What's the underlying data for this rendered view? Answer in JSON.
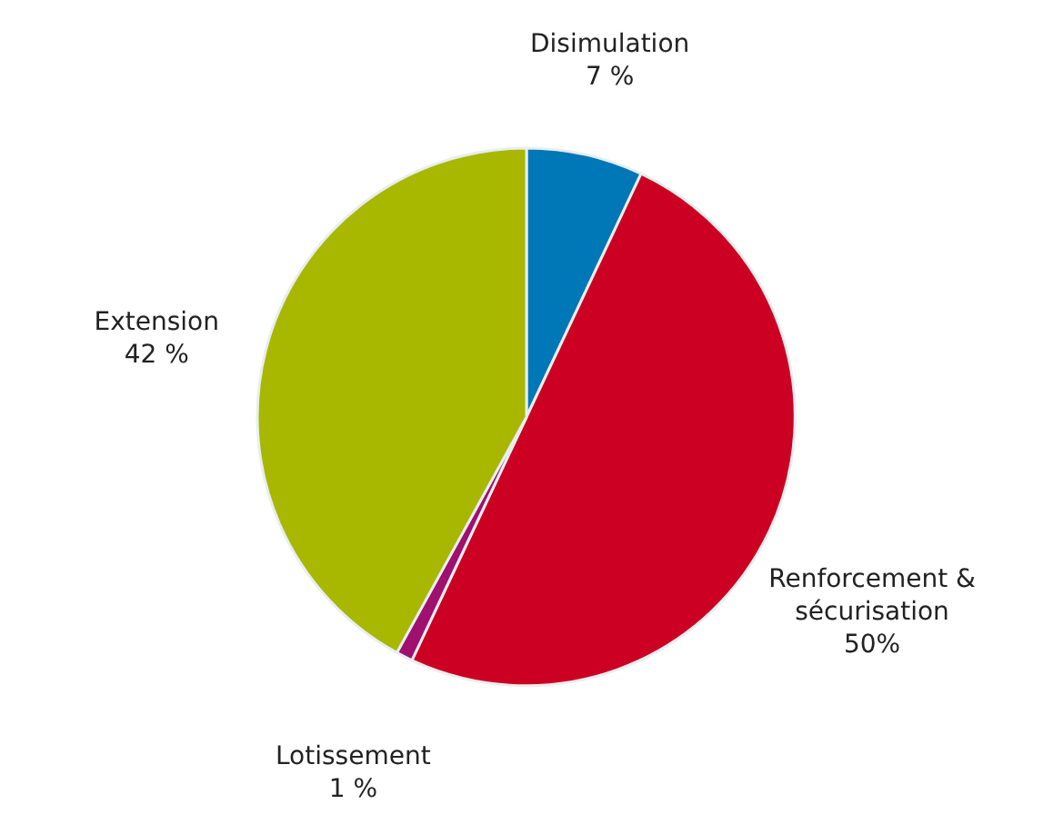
{
  "chart_data": {
    "type": "pie",
    "categories": [
      "Disimulation",
      "Renforcement & sécurisation",
      "Lotissement",
      "Extension"
    ],
    "values": [
      7,
      50,
      1,
      42
    ],
    "value_labels": [
      "7 %",
      "50%",
      "1 %",
      "42 %"
    ],
    "colors": [
      "#0077b6",
      "#cc0022",
      "#a0106e",
      "#a8b800"
    ],
    "legend": false
  }
}
